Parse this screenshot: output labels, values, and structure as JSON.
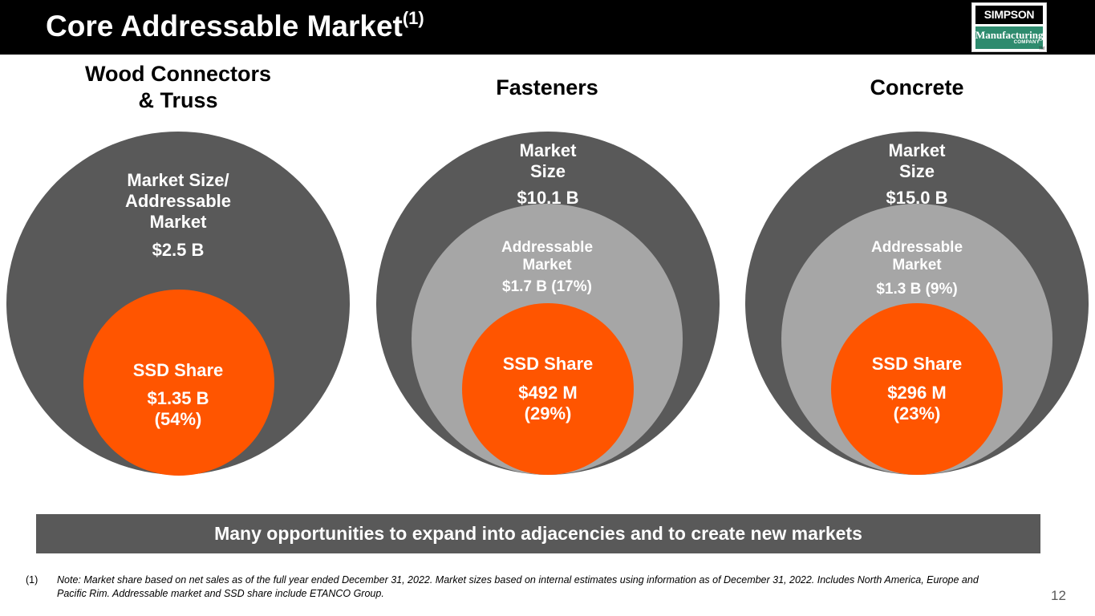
{
  "header": {
    "title": "Core Addressable Market",
    "title_superscript": "(1)"
  },
  "logo": {
    "top_text": "SIMPSON",
    "middle_text": "Manufacturing",
    "bottom_text": "COMPANY",
    "trademark": "TM"
  },
  "markets": {
    "wood": {
      "title_line1": "Wood Connectors",
      "title_line2": "& Truss",
      "market_label_line1": "Market Size/",
      "market_label_line2": "Addressable",
      "market_label_line3": "Market",
      "market_value": "$2.5 B",
      "share_label": "SSD Share",
      "share_value": "$1.35 B",
      "share_pct": "(54%)"
    },
    "fasteners": {
      "title": "Fasteners",
      "market_label_line1": "Market",
      "market_label_line2": "Size",
      "market_value": "$10.1 B",
      "addressable_label_line1": "Addressable",
      "addressable_label_line2": "Market",
      "addressable_value": "$1.7 B (17%)",
      "share_label": "SSD Share",
      "share_value": "$492 M",
      "share_pct": "(29%)"
    },
    "concrete": {
      "title": "Concrete",
      "market_label_line1": "Market",
      "market_label_line2": "Size",
      "market_value": "$15.0 B",
      "addressable_label_line1": "Addressable",
      "addressable_label_line2": "Market",
      "addressable_value": "$1.3 B (9%)",
      "share_label": "SSD Share",
      "share_value": "$296 M",
      "share_pct": "(23%)"
    }
  },
  "banner": {
    "text": "Many opportunities to expand into adjacencies and to create new markets"
  },
  "footnote": {
    "number": "(1)",
    "text": "Note: Market share based on net sales as of the full year ended December 31, 2022. Market sizes based on internal estimates using information as of December 31, 2022. Includes North America, Europe and Pacific Rim. Addressable market and SSD share include ETANCO Group."
  },
  "page_number": "12",
  "colors": {
    "header_bg": "#000000",
    "outer_circle": "#595959",
    "addressable_circle": "#a6a6a6",
    "ssd_circle": "#ff5500",
    "banner_bg": "#595959",
    "logo_green": "#2e8b6e"
  }
}
